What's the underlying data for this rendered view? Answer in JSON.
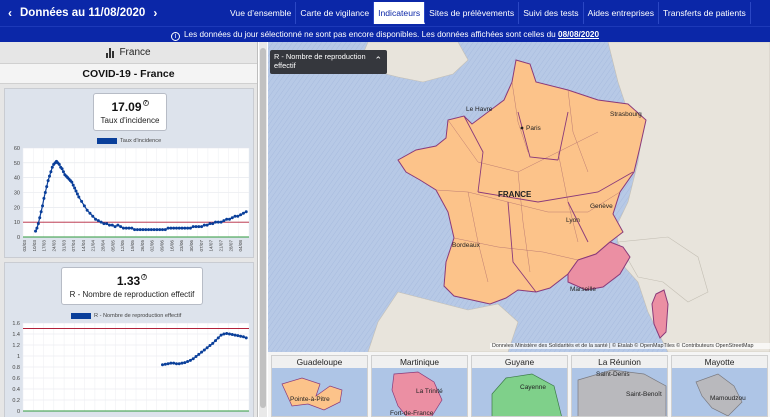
{
  "header": {
    "date_label": "Données au 11/08/2020",
    "tabs": [
      {
        "label": "Vue d’ensemble"
      },
      {
        "label": "Carte de vigilance"
      },
      {
        "label": "Indicateurs"
      },
      {
        "label": "Sites de prélèvements"
      },
      {
        "label": "Suivi des tests"
      },
      {
        "label": "Aides entreprises"
      },
      {
        "label": "Transferts de patients"
      }
    ],
    "active_tab": "Indicateurs"
  },
  "notice": {
    "text": "Les données du jour sélectionné ne sont pas encore disponibles. Les données affichées sont celles du",
    "date": "08/08/2020"
  },
  "left_panel": {
    "country": "France",
    "title": "COVID-19 - France",
    "incidence": {
      "value": "17.09",
      "label": "Taux d'incidence",
      "legend": "Taux d'incidence"
    },
    "reproduction": {
      "value": "1.33",
      "label": "R - Nombre de reproduction effectif",
      "legend": "R - Nombre de reproduction effectif"
    }
  },
  "map": {
    "indicator_label": "R - Nombre de reproduction effectif",
    "labels": {
      "le_havre": "Le Havre",
      "paris": "Paris",
      "strasbourg": "Strasbourg",
      "france": "FRANCE",
      "geneve": "Genève",
      "lyon": "Lyon",
      "bordeaux": "Bordeaux",
      "marseille": "Marseille"
    },
    "attribution": "Données Ministère des Solidarités et de la santé | © Etalab © OpenMapTiles © Contributeurs OpenStreetMap",
    "colors": {
      "sea": "#b7c9e6",
      "land_other": "#e8e4dc",
      "region_orange": "#fcc38a",
      "region_pink": "#eb8fa3",
      "borders": "#8a3a7a"
    }
  },
  "insets": [
    {
      "name": "Guadeloupe",
      "cities": [
        "Pointe-à-Pitre"
      ]
    },
    {
      "name": "Martinique",
      "cities": [
        "La Trinité",
        "Fort-de-France"
      ]
    },
    {
      "name": "Guyane",
      "cities": [
        "Cayenne"
      ]
    },
    {
      "name": "La Réunion",
      "cities": [
        "Saint-Denis",
        "Saint-Benoît"
      ]
    },
    {
      "name": "Mayotte",
      "cities": [
        "Mamoudzou"
      ]
    }
  ],
  "chart_data": [
    {
      "type": "line",
      "series": [
        {
          "name": "Taux d'incidence",
          "color": "#0a3f9a"
        }
      ],
      "ylim": [
        0,
        60
      ],
      "yticks": [
        0,
        10,
        20,
        30,
        40,
        50,
        60
      ],
      "xticks": [
        "03/03",
        "10/03",
        "17/03",
        "24/03",
        "31/03",
        "07/04",
        "14/04",
        "21/04",
        "28/04",
        "05/05",
        "12/05",
        "19/05",
        "26/05",
        "02/06",
        "09/06",
        "16/06",
        "23/06",
        "30/06",
        "07/07",
        "14/07",
        "21/07",
        "28/07",
        "04/08"
      ],
      "reference_line": 10,
      "x": [
        9,
        10,
        11,
        12,
        13,
        14,
        15,
        16,
        17,
        18,
        19,
        20,
        21,
        22,
        23,
        24,
        25,
        26,
        27,
        28,
        29,
        30,
        31,
        32,
        33,
        34,
        35,
        36,
        37,
        38,
        39,
        40,
        42,
        44,
        46,
        48,
        50,
        52,
        54,
        56,
        58,
        60,
        62,
        64,
        66,
        68,
        70,
        72,
        74,
        76,
        78,
        80,
        82,
        84,
        86,
        88,
        90,
        92,
        94,
        96,
        98,
        100,
        102,
        104,
        106,
        108,
        110,
        112,
        114,
        116,
        118,
        120,
        122,
        124,
        126,
        128,
        130,
        132,
        134,
        136,
        138,
        140,
        142,
        144,
        146,
        148,
        150,
        152,
        154,
        156,
        158,
        160
      ],
      "values": [
        4,
        6,
        9,
        13,
        17,
        21,
        26,
        30,
        34,
        38,
        41,
        44,
        47,
        49,
        50,
        51,
        50,
        49,
        47,
        46,
        44,
        42,
        41,
        40,
        39,
        38,
        37,
        35,
        33,
        31,
        29,
        27,
        24,
        21,
        18,
        16,
        14,
        12,
        11,
        10,
        9,
        9,
        8,
        8,
        7,
        8,
        7,
        6,
        6,
        6,
        6,
        5,
        5,
        5,
        5,
        5,
        5,
        5,
        5,
        5,
        5,
        5,
        5,
        6,
        6,
        6,
        6,
        6,
        6,
        6,
        6,
        6,
        7,
        7,
        7,
        7,
        8,
        8,
        9,
        9,
        10,
        10,
        10,
        11,
        12,
        12,
        13,
        14,
        14,
        15,
        16,
        17
      ]
    },
    {
      "type": "line",
      "series": [
        {
          "name": "R - Nombre de reproduction effectif",
          "color": "#0a3f9a"
        }
      ],
      "ylim": [
        0,
        1.6
      ],
      "yticks": [
        0,
        0.2,
        0.4,
        0.6,
        0.8,
        1.0,
        1.2,
        1.4,
        1.6
      ],
      "reference_line": 1.5,
      "lower_line": 0,
      "x": [
        100,
        102,
        104,
        106,
        108,
        110,
        112,
        114,
        116,
        118,
        120,
        122,
        124,
        126,
        128,
        130,
        132,
        134,
        136,
        138,
        140,
        142,
        144,
        146,
        148,
        150,
        152,
        154,
        156,
        158,
        160
      ],
      "values": [
        0.84,
        0.85,
        0.86,
        0.87,
        0.87,
        0.86,
        0.86,
        0.87,
        0.88,
        0.9,
        0.92,
        0.95,
        0.99,
        1.03,
        1.07,
        1.11,
        1.15,
        1.19,
        1.23,
        1.28,
        1.33,
        1.38,
        1.4,
        1.41,
        1.4,
        1.39,
        1.38,
        1.37,
        1.36,
        1.35,
        1.33
      ]
    }
  ]
}
